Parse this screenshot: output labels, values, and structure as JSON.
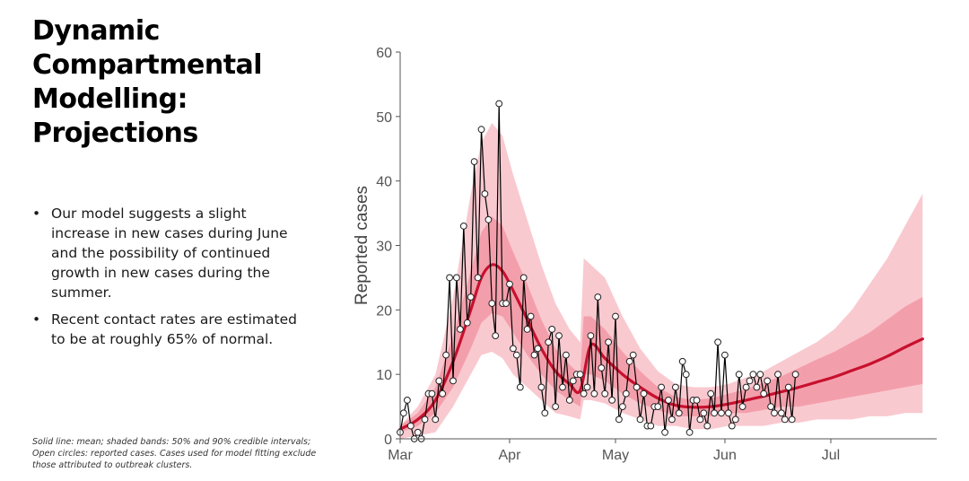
{
  "slide": {
    "title": "Dynamic Compartmental Modelling: Projections",
    "bullets": [
      "Our model suggests a slight increase in new cases during June and the possibility of continued growth in new cases during the summer.",
      "Recent contact rates are estimated to be at roughly 65% of normal."
    ],
    "bullet_symbol": "•",
    "footnote": "Solid line: mean; shaded bands: 50% and 90% credible intervals; Open circles: reported cases. Cases used for model fitting exclude those attributed to outbreak clusters."
  },
  "chart_data": {
    "type": "line",
    "title": "",
    "xlabel": "",
    "ylabel": "Reported cases",
    "ylim": [
      0,
      60
    ],
    "yticks": [
      0,
      10,
      20,
      30,
      40,
      50,
      60
    ],
    "xlim": [
      "2020-03-01",
      "2020-07-31"
    ],
    "xticks": [
      {
        "date": "2020-03-01",
        "label": "Mar"
      },
      {
        "date": "2020-04-01",
        "label": "Apr"
      },
      {
        "date": "2020-05-01",
        "label": "May"
      },
      {
        "date": "2020-06-01",
        "label": "Jun"
      },
      {
        "date": "2020-07-01",
        "label": "Jul"
      }
    ],
    "grid": false,
    "colors": {
      "mean_line": "#c8102e",
      "band_90": "#f8c0c8",
      "band_50": "#f0909f",
      "observed_line": "#000000",
      "observed_marker_fill": "#ffffff"
    },
    "series": [
      {
        "kind": "observed",
        "points": [
          [
            "2020-03-01",
            1
          ],
          [
            "2020-03-02",
            4
          ],
          [
            "2020-03-03",
            6
          ],
          [
            "2020-03-04",
            2
          ],
          [
            "2020-03-05",
            0
          ],
          [
            "2020-03-06",
            1
          ],
          [
            "2020-03-07",
            0
          ],
          [
            "2020-03-08",
            3
          ],
          [
            "2020-03-09",
            7
          ],
          [
            "2020-03-10",
            7
          ],
          [
            "2020-03-11",
            3
          ],
          [
            "2020-03-12",
            9
          ],
          [
            "2020-03-13",
            7
          ],
          [
            "2020-03-14",
            13
          ],
          [
            "2020-03-15",
            25
          ],
          [
            "2020-03-16",
            9
          ],
          [
            "2020-03-17",
            25
          ],
          [
            "2020-03-18",
            17
          ],
          [
            "2020-03-19",
            33
          ],
          [
            "2020-03-20",
            18
          ],
          [
            "2020-03-21",
            22
          ],
          [
            "2020-03-22",
            43
          ],
          [
            "2020-03-23",
            25
          ],
          [
            "2020-03-24",
            48
          ],
          [
            "2020-03-25",
            38
          ],
          [
            "2020-03-26",
            34
          ],
          [
            "2020-03-27",
            21
          ],
          [
            "2020-03-28",
            16
          ],
          [
            "2020-03-29",
            52
          ],
          [
            "2020-03-30",
            21
          ],
          [
            "2020-03-31",
            21
          ],
          [
            "2020-04-01",
            24
          ],
          [
            "2020-04-02",
            14
          ],
          [
            "2020-04-03",
            13
          ],
          [
            "2020-04-04",
            8
          ],
          [
            "2020-04-05",
            25
          ],
          [
            "2020-04-06",
            17
          ],
          [
            "2020-04-07",
            19
          ],
          [
            "2020-04-08",
            13
          ],
          [
            "2020-04-09",
            14
          ],
          [
            "2020-04-10",
            8
          ],
          [
            "2020-04-11",
            4
          ],
          [
            "2020-04-12",
            15
          ],
          [
            "2020-04-13",
            17
          ],
          [
            "2020-04-14",
            5
          ],
          [
            "2020-04-15",
            16
          ],
          [
            "2020-04-16",
            8
          ],
          [
            "2020-04-17",
            13
          ],
          [
            "2020-04-18",
            6
          ],
          [
            "2020-04-19",
            9
          ],
          [
            "2020-04-20",
            10
          ],
          [
            "2020-04-21",
            10
          ],
          [
            "2020-04-22",
            7
          ],
          [
            "2020-04-23",
            8
          ],
          [
            "2020-04-24",
            16
          ],
          [
            "2020-04-25",
            7
          ],
          [
            "2020-04-26",
            22
          ],
          [
            "2020-04-27",
            11
          ],
          [
            "2020-04-28",
            7
          ],
          [
            "2020-04-29",
            15
          ],
          [
            "2020-04-30",
            6
          ],
          [
            "2020-05-01",
            19
          ],
          [
            "2020-05-02",
            3
          ],
          [
            "2020-05-03",
            5
          ],
          [
            "2020-05-04",
            7
          ],
          [
            "2020-05-05",
            12
          ],
          [
            "2020-05-06",
            13
          ],
          [
            "2020-05-07",
            8
          ],
          [
            "2020-05-08",
            3
          ],
          [
            "2020-05-09",
            7
          ],
          [
            "2020-05-10",
            2
          ],
          [
            "2020-05-11",
            2
          ],
          [
            "2020-05-12",
            5
          ],
          [
            "2020-05-13",
            5
          ],
          [
            "2020-05-14",
            8
          ],
          [
            "2020-05-15",
            1
          ],
          [
            "2020-05-16",
            6
          ],
          [
            "2020-05-17",
            3
          ],
          [
            "2020-05-18",
            8
          ],
          [
            "2020-05-19",
            4
          ],
          [
            "2020-05-20",
            12
          ],
          [
            "2020-05-21",
            10
          ],
          [
            "2020-05-22",
            1
          ],
          [
            "2020-05-23",
            6
          ],
          [
            "2020-05-24",
            6
          ],
          [
            "2020-05-25",
            3
          ],
          [
            "2020-05-26",
            4
          ],
          [
            "2020-05-27",
            2
          ],
          [
            "2020-05-28",
            7
          ],
          [
            "2020-05-29",
            4
          ],
          [
            "2020-05-30",
            15
          ],
          [
            "2020-05-31",
            4
          ],
          [
            "2020-06-01",
            13
          ],
          [
            "2020-06-02",
            4
          ],
          [
            "2020-06-03",
            2
          ],
          [
            "2020-06-04",
            3
          ],
          [
            "2020-06-05",
            10
          ],
          [
            "2020-06-06",
            5
          ],
          [
            "2020-06-07",
            8
          ],
          [
            "2020-06-08",
            9
          ],
          [
            "2020-06-09",
            10
          ],
          [
            "2020-06-10",
            8
          ],
          [
            "2020-06-11",
            10
          ],
          [
            "2020-06-12",
            7
          ],
          [
            "2020-06-13",
            9
          ],
          [
            "2020-06-14",
            5
          ],
          [
            "2020-06-15",
            4
          ],
          [
            "2020-06-16",
            10
          ],
          [
            "2020-06-17",
            4
          ],
          [
            "2020-06-18",
            3
          ],
          [
            "2020-06-19",
            8
          ],
          [
            "2020-06-20",
            3
          ],
          [
            "2020-06-21",
            10
          ]
        ]
      },
      {
        "kind": "mean",
        "points": [
          [
            "2020-03-01",
            1.5
          ],
          [
            "2020-03-06",
            3
          ],
          [
            "2020-03-11",
            6
          ],
          [
            "2020-03-16",
            12
          ],
          [
            "2020-03-21",
            20
          ],
          [
            "2020-03-24",
            25
          ],
          [
            "2020-03-27",
            27
          ],
          [
            "2020-03-30",
            26
          ],
          [
            "2020-04-02",
            23
          ],
          [
            "2020-04-06",
            18.5
          ],
          [
            "2020-04-10",
            14
          ],
          [
            "2020-04-14",
            10.5
          ],
          [
            "2020-04-18",
            8.5
          ],
          [
            "2020-04-21",
            7.5
          ],
          [
            "2020-04-24",
            14.5
          ],
          [
            "2020-04-28",
            12.5
          ],
          [
            "2020-05-03",
            10
          ],
          [
            "2020-05-08",
            8
          ],
          [
            "2020-05-13",
            6.3
          ],
          [
            "2020-05-18",
            5.2
          ],
          [
            "2020-05-23",
            4.9
          ],
          [
            "2020-05-28",
            5
          ],
          [
            "2020-06-02",
            5.4
          ],
          [
            "2020-06-07",
            6
          ],
          [
            "2020-06-12",
            6.6
          ],
          [
            "2020-06-17",
            7.3
          ],
          [
            "2020-06-22",
            8
          ],
          [
            "2020-06-27",
            8.8
          ],
          [
            "2020-07-02",
            9.6
          ],
          [
            "2020-07-07",
            10.6
          ],
          [
            "2020-07-12",
            11.6
          ],
          [
            "2020-07-17",
            12.8
          ],
          [
            "2020-07-22",
            14.2
          ],
          [
            "2020-07-27",
            15.5
          ]
        ]
      },
      {
        "kind": "band_90",
        "points": [
          [
            "2020-03-01",
            0,
            2
          ],
          [
            "2020-03-06",
            0.5,
            5
          ],
          [
            "2020-03-11",
            1,
            10
          ],
          [
            "2020-03-16",
            5,
            22
          ],
          [
            "2020-03-21",
            10,
            38
          ],
          [
            "2020-03-24",
            13,
            46
          ],
          [
            "2020-03-27",
            13.5,
            49
          ],
          [
            "2020-03-30",
            12.5,
            47
          ],
          [
            "2020-04-02",
            10,
            41
          ],
          [
            "2020-04-06",
            8,
            34
          ],
          [
            "2020-04-10",
            6,
            27
          ],
          [
            "2020-04-14",
            4,
            21
          ],
          [
            "2020-04-18",
            3.5,
            17
          ],
          [
            "2020-04-21",
            3,
            15
          ],
          [
            "2020-04-22",
            6,
            28
          ],
          [
            "2020-04-24",
            6,
            27
          ],
          [
            "2020-04-28",
            5.5,
            25
          ],
          [
            "2020-05-03",
            4,
            19
          ],
          [
            "2020-05-08",
            3,
            14
          ],
          [
            "2020-05-13",
            2,
            10.5
          ],
          [
            "2020-05-18",
            2,
            8.5
          ],
          [
            "2020-05-23",
            1.5,
            8
          ],
          [
            "2020-05-28",
            1.5,
            8
          ],
          [
            "2020-06-02",
            2,
            8.5
          ],
          [
            "2020-06-07",
            2,
            9.5
          ],
          [
            "2020-06-12",
            2,
            10.5
          ],
          [
            "2020-06-17",
            2.5,
            12
          ],
          [
            "2020-06-22",
            2.5,
            13.5
          ],
          [
            "2020-06-27",
            3,
            15
          ],
          [
            "2020-07-02",
            3,
            17
          ],
          [
            "2020-07-07",
            3,
            20
          ],
          [
            "2020-07-12",
            3.5,
            24
          ],
          [
            "2020-07-17",
            3.5,
            28
          ],
          [
            "2020-07-22",
            4,
            33
          ],
          [
            "2020-07-27",
            4,
            38
          ]
        ]
      },
      {
        "kind": "band_50",
        "points": [
          [
            "2020-03-01",
            1,
            2
          ],
          [
            "2020-03-06",
            2,
            4
          ],
          [
            "2020-03-11",
            4,
            8
          ],
          [
            "2020-03-16",
            8,
            16
          ],
          [
            "2020-03-21",
            14,
            26
          ],
          [
            "2020-03-24",
            18,
            32
          ],
          [
            "2020-03-27",
            19.5,
            34.5
          ],
          [
            "2020-03-30",
            19,
            33
          ],
          [
            "2020-04-02",
            16.5,
            29
          ],
          [
            "2020-04-06",
            13,
            24
          ],
          [
            "2020-04-10",
            10,
            18.5
          ],
          [
            "2020-04-14",
            7.5,
            14
          ],
          [
            "2020-04-18",
            6,
            11.5
          ],
          [
            "2020-04-21",
            5,
            10
          ],
          [
            "2020-04-22",
            10,
            19
          ],
          [
            "2020-04-24",
            10,
            19
          ],
          [
            "2020-04-28",
            9,
            17
          ],
          [
            "2020-05-03",
            7,
            13.5
          ],
          [
            "2020-05-08",
            5.5,
            10.5
          ],
          [
            "2020-05-13",
            4.5,
            8
          ],
          [
            "2020-05-18",
            3.5,
            6.5
          ],
          [
            "2020-05-23",
            3.5,
            6
          ],
          [
            "2020-05-28",
            3.5,
            6.3
          ],
          [
            "2020-06-02",
            4,
            7
          ],
          [
            "2020-06-07",
            4,
            7.7
          ],
          [
            "2020-06-12",
            4.5,
            8.7
          ],
          [
            "2020-06-17",
            5,
            9.7
          ],
          [
            "2020-06-22",
            5,
            11
          ],
          [
            "2020-06-27",
            5.5,
            12.3
          ],
          [
            "2020-07-02",
            6,
            13.5
          ],
          [
            "2020-07-07",
            6.5,
            15
          ],
          [
            "2020-07-12",
            7,
            16.5
          ],
          [
            "2020-07-17",
            7.5,
            18.5
          ],
          [
            "2020-07-22",
            8,
            20.5
          ],
          [
            "2020-07-27",
            8.5,
            22
          ]
        ]
      }
    ]
  }
}
